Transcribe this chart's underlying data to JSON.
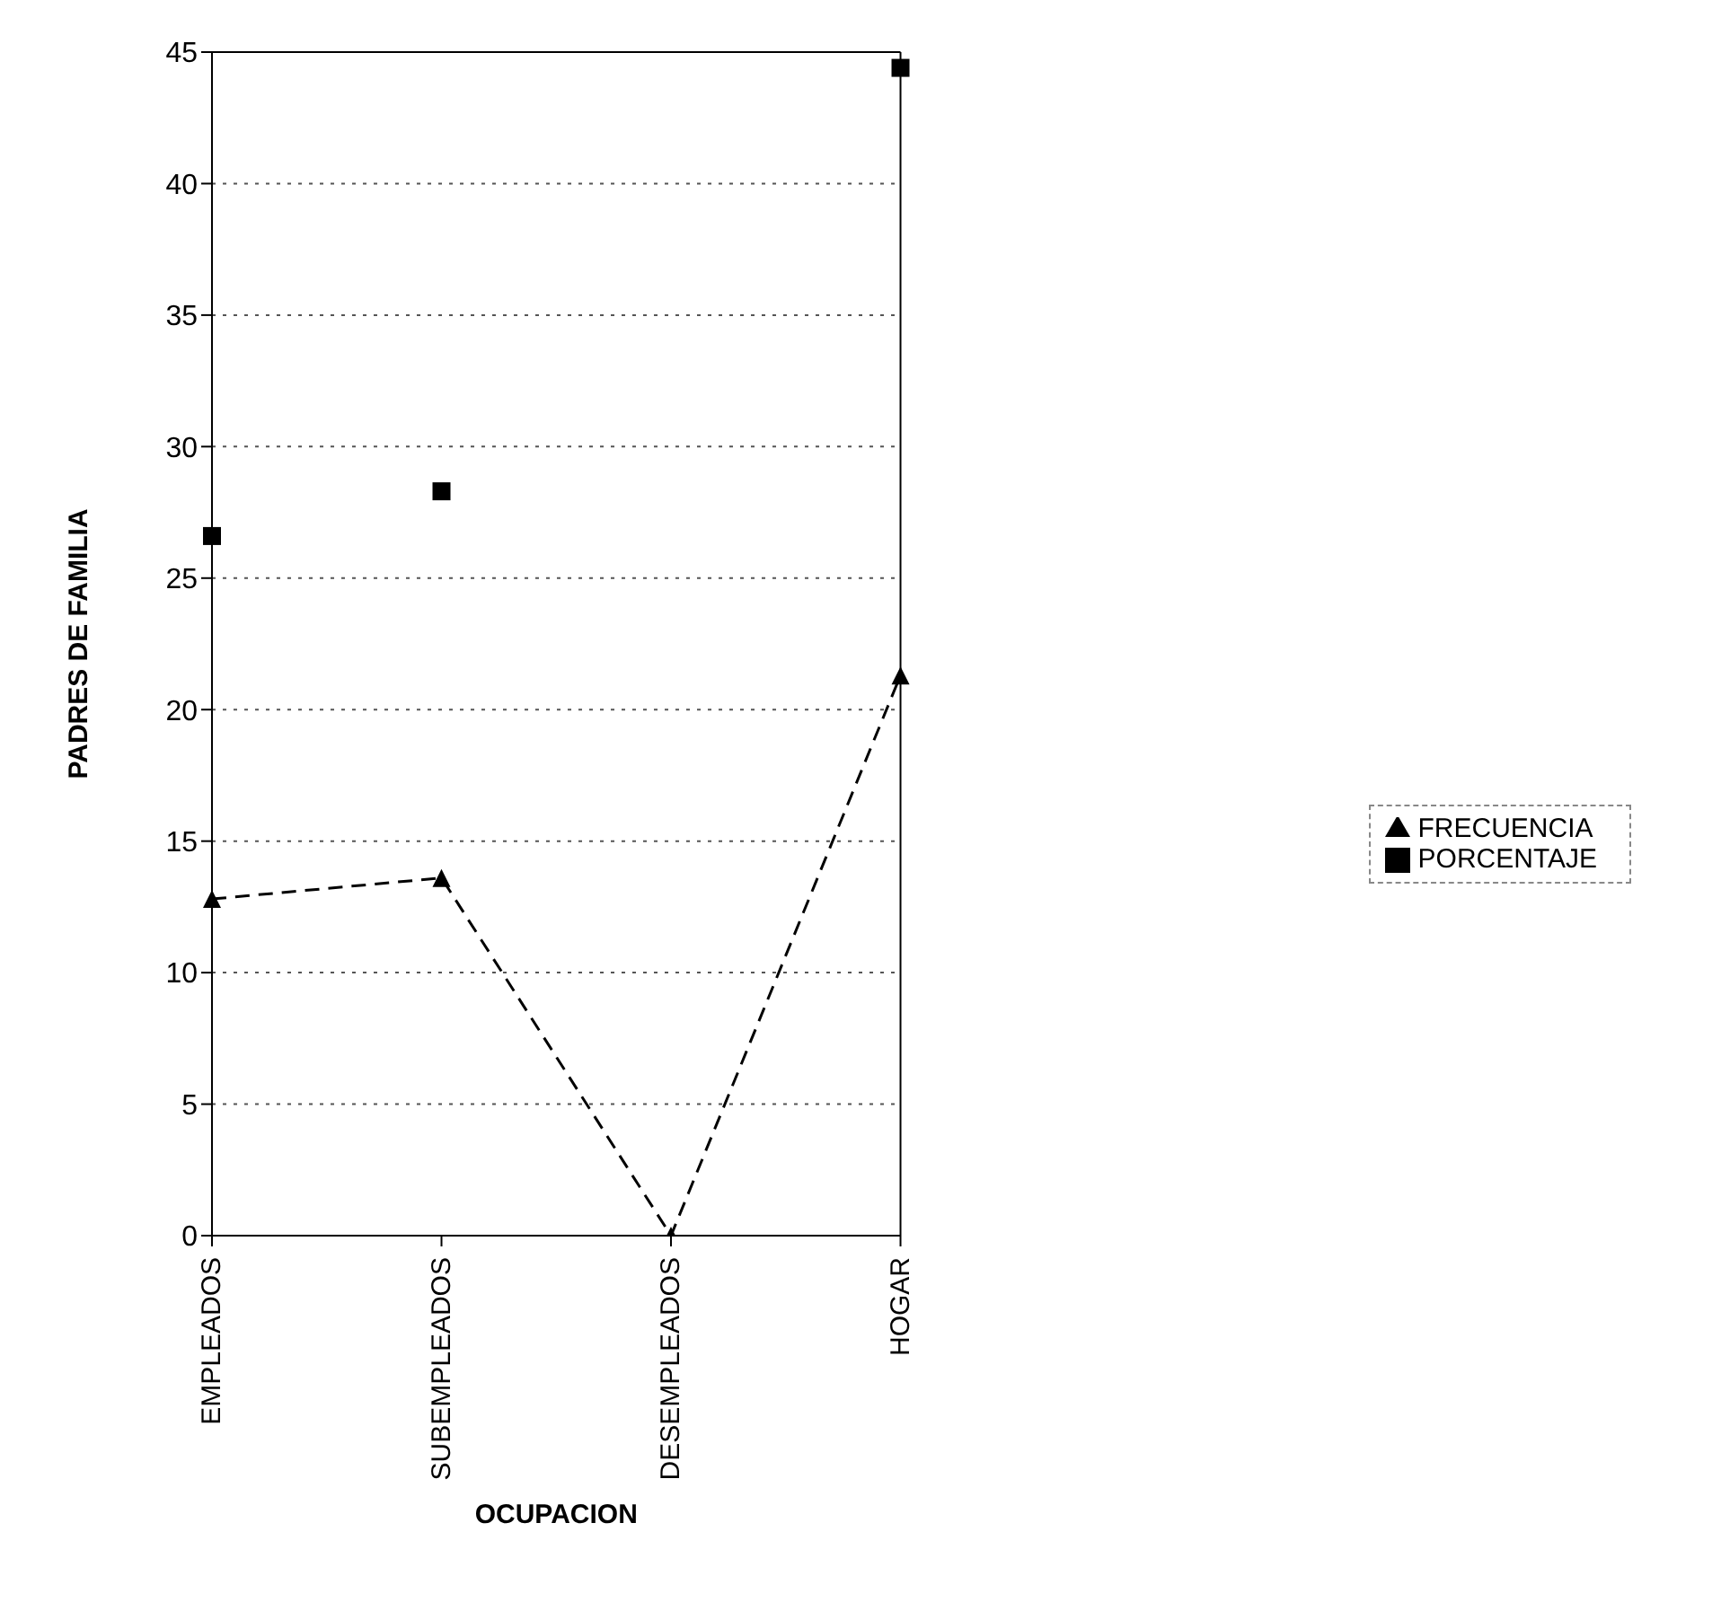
{
  "chart_data": {
    "type": "line",
    "xlabel": "OCUPACION",
    "ylabel": "PADRES DE FAMILIA",
    "categories": [
      "EMPLEADOS",
      "SUBEMPLEADOS",
      "DESEMPLEADOS",
      "HOGAR"
    ],
    "series": [
      {
        "name": "FRECUENCIA",
        "color": "#000000",
        "values": [
          12.8,
          13.6,
          0,
          21.3
        ],
        "marker": "triangle",
        "line_style": "dashed"
      },
      {
        "name": "PORCENTAJE",
        "type": "scatter",
        "color": "#000000",
        "values": [
          26.6,
          28.3,
          null,
          44.4
        ],
        "marker": "square"
      }
    ],
    "ylim": [
      0,
      45
    ],
    "yticks": [
      0,
      5,
      10,
      15,
      20,
      25,
      30,
      35,
      40,
      45
    ],
    "grid": "y",
    "legend": "right"
  }
}
